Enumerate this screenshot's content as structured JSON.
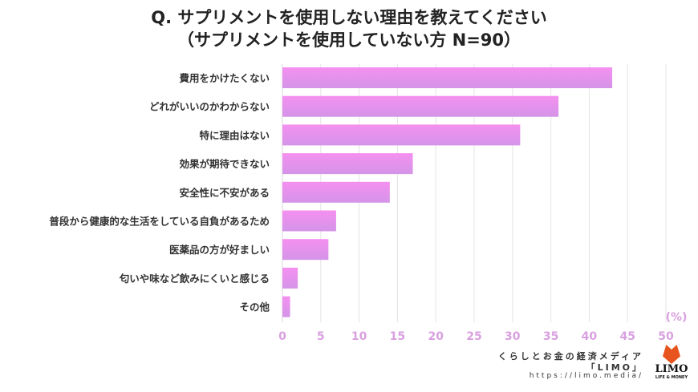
{
  "chart_data": {
    "type": "bar",
    "orientation": "horizontal",
    "title": "Q. サプリメントを使用しない理由を教えてください",
    "subtitle": "（サプリメントを使用していない方 N=90）",
    "categories": [
      "費用をかけたくない",
      "どれがいいのかわからない",
      "特に理由はない",
      "効果が期待できない",
      "安全性に不安がある",
      "普段から健康的な生活をしている自負があるため",
      "医薬品の方が好ましい",
      "匂いや味など飲みにくいと感じる",
      "その他"
    ],
    "values": [
      43,
      36,
      31,
      17,
      14,
      7,
      6,
      2,
      1
    ],
    "xlim": [
      0,
      50
    ],
    "xticks": [
      "0",
      "5",
      "10",
      "15",
      "20",
      "25",
      "30",
      "35",
      "40",
      "45",
      "50"
    ],
    "unit_label": "(%)",
    "grid": true,
    "bar_color_top": "#f590f0",
    "bar_color_bottom": "#d494e8",
    "tick_color": "#d9a0e0"
  },
  "credit": {
    "line1": "くらしとお金の経済メディア",
    "line2": "「LIMO」",
    "line3": "https://limo.media/",
    "logo_text": "LIMO",
    "logo_sub": "LIFE & MONEY"
  }
}
